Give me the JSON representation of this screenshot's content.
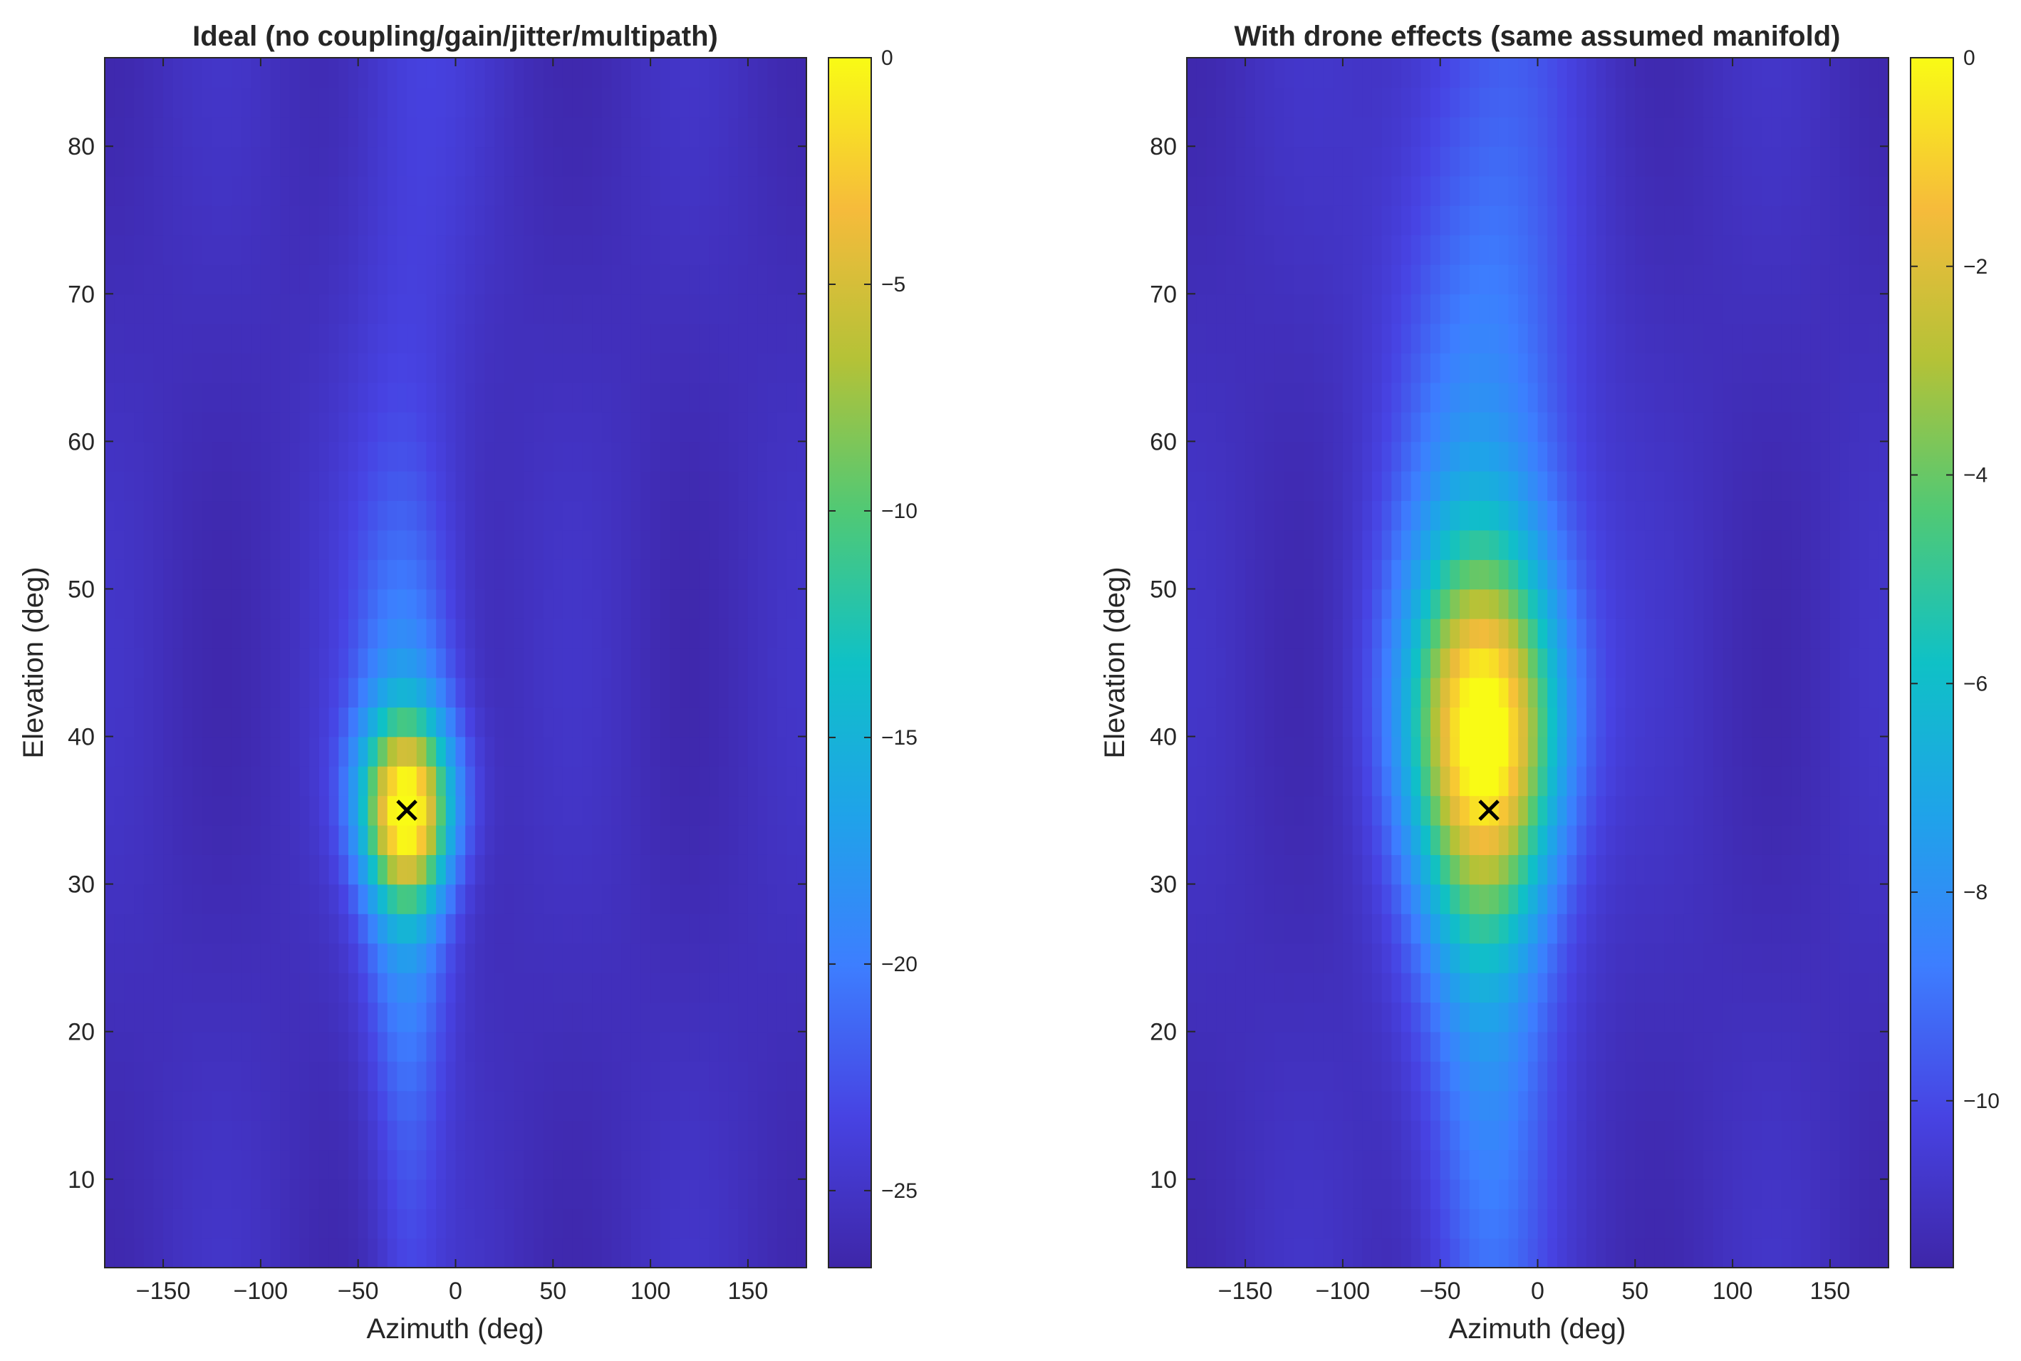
{
  "chart_data": [
    {
      "type": "heatmap",
      "title": "Ideal (no coupling/gain/jitter/multipath)",
      "xlabel": "Azimuth (deg)",
      "ylabel": "Elevation (deg)",
      "xlim": [
        -180,
        180
      ],
      "ylim": [
        4,
        86
      ],
      "x_ticks": [
        -150,
        -100,
        -50,
        0,
        50,
        100,
        150
      ],
      "y_ticks": [
        10,
        20,
        30,
        40,
        50,
        60,
        70,
        80
      ],
      "x_tick_labels": [
        "−150",
        "−100",
        "−50",
        "0",
        "50",
        "100",
        "150"
      ],
      "y_tick_labels": [
        "10",
        "20",
        "30",
        "40",
        "50",
        "60",
        "70",
        "80"
      ],
      "colorbar": {
        "range": [
          -26.7,
          0
        ],
        "ticks": [
          0,
          -5,
          -10,
          -15,
          -20,
          -25
        ],
        "tick_labels": [
          "0",
          "−5",
          "−10",
          "−15",
          "−20",
          "−25"
        ]
      },
      "colormap": "parula",
      "grid": false,
      "peak": {
        "azimuth": -25,
        "elevation": 35,
        "value": 0
      },
      "beam": {
        "center_azimuth": -25,
        "width_top": 25,
        "width_bottom": 12,
        "elevation_spread": 6
      },
      "marker": {
        "azimuth": -25,
        "elevation": 35,
        "symbol": "×"
      }
    },
    {
      "type": "heatmap",
      "title": "With drone effects (same assumed manifold)",
      "xlabel": "Azimuth (deg)",
      "ylabel": "Elevation (deg)",
      "xlim": [
        -180,
        180
      ],
      "ylim": [
        4,
        86
      ],
      "x_ticks": [
        -150,
        -100,
        -50,
        0,
        50,
        100,
        150
      ],
      "y_ticks": [
        10,
        20,
        30,
        40,
        50,
        60,
        70,
        80
      ],
      "x_tick_labels": [
        "−150",
        "−100",
        "−50",
        "0",
        "50",
        "100",
        "150"
      ],
      "y_tick_labels": [
        "10",
        "20",
        "30",
        "40",
        "50",
        "60",
        "70",
        "80"
      ],
      "colorbar": {
        "range": [
          -11.6,
          0
        ],
        "ticks": [
          0,
          -2,
          -4,
          -6,
          -8,
          -10
        ],
        "tick_labels": [
          "0",
          "−2",
          "−4",
          "−6",
          "−8",
          "−10"
        ]
      },
      "colormap": "parula",
      "grid": false,
      "peak": {
        "azimuth": -27,
        "elevation": 40,
        "value": 0
      },
      "beam": {
        "center_azimuth": -27,
        "width_top": 35,
        "width_bottom": 22,
        "elevation_spread": 12
      },
      "marker": {
        "azimuth": -25,
        "elevation": 35,
        "symbol": "×"
      }
    }
  ]
}
